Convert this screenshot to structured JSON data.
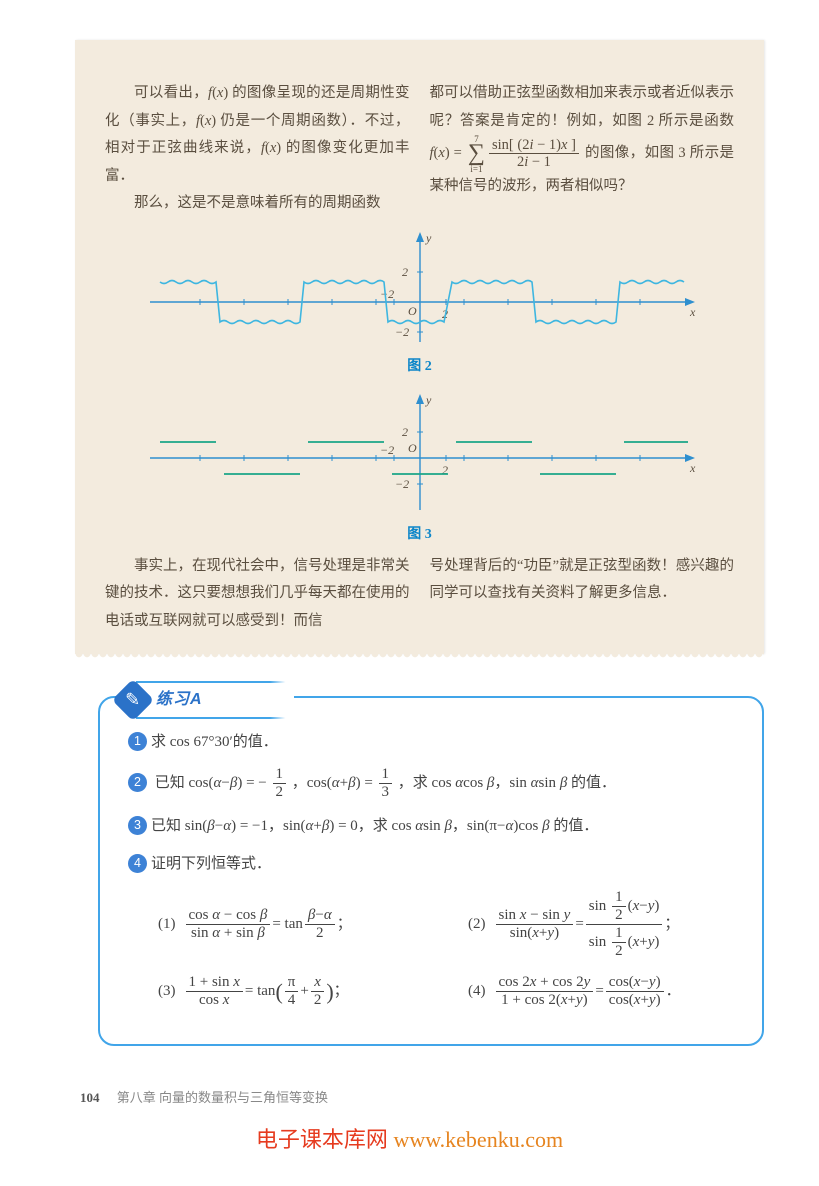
{
  "reading": {
    "para1": "可以看出，<span class='it'>f</span>(<span class='it'>x</span>) 的图像呈现的还是周期性变化（事实上，<span class='it'>f</span>(<span class='it'>x</span>) 仍是一个周期函数）．不过，相对于正弦曲线来说，<span class='it'>f</span>(<span class='it'>x</span>) 的图像变化更加丰富．",
    "para2": "那么，这是不是意味着所有的周期函数",
    "para3_pre": "都可以借助正弦型函数相加来表示或者近似表示呢？答案是肯定的！例如，如图 2 所示是函数 <span class='it'>f</span>(<span class='it'>x</span>) = ",
    "para3_post": " 的图像，如图 3 所示是某种信号的波形，两者相似吗？",
    "sum_top": "7",
    "sum_bot": "i=1",
    "sum_num": "sin[ (2<span class='it'>i</span> − 1)<span class='it'>x</span> ]",
    "sum_den": "2<span class='it'>i</span> − 1",
    "fig2_label": "图 2",
    "fig3_label": "图 3",
    "para4": "事实上，在现代社会中，信号处理是非常关键的技术．这只要想想我们几乎每天都在使用的电话或互联网就可以感受到！而信",
    "para5": "号处理背后的“功臣”就是正弦型函数！感兴趣的同学可以查找有关资料了解更多信息．",
    "chart2": {
      "type": "line",
      "xlim": [
        -13,
        13
      ],
      "ylim": [
        -2.5,
        2.5
      ],
      "yticks": [
        -2,
        2
      ],
      "xticks": [
        -2,
        2
      ],
      "axis_color": "#2e8fcf",
      "line_color": "#3eb6e0",
      "bg": "#f3ebde"
    },
    "chart3": {
      "type": "step",
      "xlim": [
        -13,
        13
      ],
      "ylim": [
        -2.5,
        2.5
      ],
      "yticks": [
        -2,
        2
      ],
      "xticks": [
        -2,
        2
      ],
      "axis_color": "#2e8fcf",
      "line_color": "#1aa587",
      "bg": "#f3ebde"
    }
  },
  "exercise": {
    "title": "练习A",
    "q1": "求 cos 67°30′的值．",
    "q2_pre": "已知 cos(<span class='it'>α</span>−<span class='it'>β</span>) = −",
    "q2_f1n": "1",
    "q2_f1d": "2",
    "q2_mid": "，cos(<span class='it'>α</span>+<span class='it'>β</span>) = ",
    "q2_f2n": "1",
    "q2_f2d": "3",
    "q2_post": "，求 cos <span class='it'>α</span>cos <span class='it'>β</span>，sin <span class='it'>α</span>sin <span class='it'>β</span> 的值．",
    "q3": "已知 sin(<span class='it'>β</span>−<span class='it'>α</span>) = −1，sin(<span class='it'>α</span>+<span class='it'>β</span>) = 0，求 cos <span class='it'>α</span>sin <span class='it'>β</span>，sin(π−<span class='it'>α</span>)cos <span class='it'>β</span> 的值．",
    "q4": "证明下列恒等式．",
    "s1_label": "(1)",
    "s2_label": "(2)",
    "s3_label": "(3)",
    "s4_label": "(4)",
    "s1_ln": "cos <span class='it'>α</span> − cos <span class='it'>β</span>",
    "s1_ld": "sin <span class='it'>α</span> + sin <span class='it'>β</span>",
    "s1_mid": " = tan ",
    "s1_rn": "<span class='it'>β</span>−<span class='it'>α</span>",
    "s1_rd": "2",
    "s2_ln": "sin <span class='it'>x</span> − sin <span class='it'>y</span>",
    "s2_ld": "sin(<span class='it'>x</span>+<span class='it'>y</span>)",
    "s3_ln": "1 + sin <span class='it'>x</span>",
    "s3_ld": "cos <span class='it'>x</span>",
    "s3_r": " = tan",
    "s3_pn": "π",
    "s3_pd": "4",
    "s3_plus": " + ",
    "s3_xn": "<span class='it'>x</span>",
    "s3_xd": "2",
    "s4_ln": "cos 2<span class='it'>x</span> + cos 2<span class='it'>y</span>",
    "s4_ld": "1 + cos 2(<span class='it'>x</span>+<span class='it'>y</span>)",
    "s4_rn": "cos(<span class='it'>x</span>−<span class='it'>y</span>)",
    "s4_rd": "cos(<span class='it'>x</span>+<span class='it'>y</span>)",
    "semi": "；",
    "period": "．",
    "eq": " = "
  },
  "footer": {
    "page": "104",
    "chapter": "第八章  向量的数量积与三角恒等变换"
  },
  "watermark": {
    "a": "电子课本库网",
    "b": " www.kebenku.com"
  },
  "glyph": {
    "y": "y",
    "x": "x",
    "O": "O",
    "n2": "2",
    "m2": "−2"
  }
}
